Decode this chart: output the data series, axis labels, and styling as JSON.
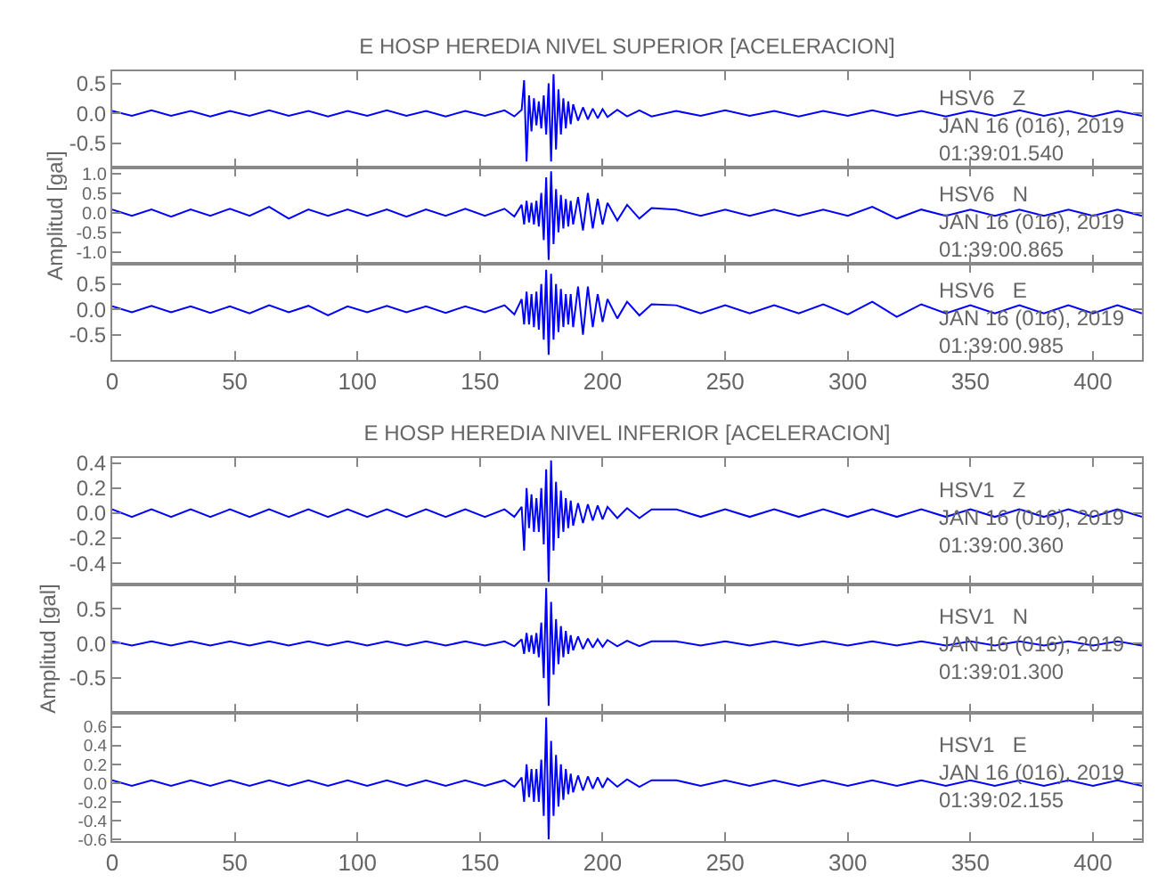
{
  "chart_data": [
    {
      "type": "line",
      "title": "E HOSP HEREDIA NIVEL SUPERIOR [ACELERACION]",
      "color": "#0000ff",
      "tick_labels": "y",
      "xlim": [
        0,
        420
      ],
      "xticks": [
        0,
        50,
        100,
        150,
        200,
        250,
        300,
        350,
        400
      ],
      "ylim": [
        -0.9,
        0.7
      ],
      "yticks": [
        {
          "value": 0.5,
          "label": "0.5"
        },
        {
          "value": 0,
          "label": "0.0"
        },
        {
          "value": -0.5,
          "label": "-0.5"
        }
      ],
      "annotations": [
        "HSV6   Z\nJAN 16 (016), 2019\n01:39:01.540"
      ],
      "x": [
        0,
        8,
        16,
        24,
        32,
        40,
        48,
        56,
        64,
        72,
        80,
        88,
        96,
        104,
        112,
        120,
        128,
        136,
        144,
        152,
        160,
        164,
        167,
        168,
        169,
        170,
        171,
        172,
        173,
        174,
        175,
        176,
        177,
        178,
        179,
        180,
        181,
        182,
        183,
        184,
        185,
        186,
        187,
        188,
        190,
        192,
        194,
        196,
        198,
        200,
        202,
        206,
        210,
        215,
        220,
        230,
        240,
        250,
        260,
        270,
        280,
        290,
        300,
        310,
        320,
        330,
        340,
        350,
        360,
        370,
        380,
        390,
        400,
        410,
        420
      ],
      "values": [
        0.04,
        -0.04,
        0.05,
        -0.04,
        0.04,
        -0.05,
        0.04,
        -0.04,
        0.05,
        -0.04,
        0.04,
        -0.05,
        0.04,
        -0.04,
        0.05,
        -0.04,
        0.04,
        -0.05,
        0.04,
        -0.04,
        0.05,
        -0.05,
        0.06,
        0.55,
        -0.8,
        0.3,
        -0.3,
        0.25,
        -0.2,
        0.2,
        -0.25,
        0.3,
        -0.35,
        0.5,
        -0.8,
        0.65,
        -0.6,
        0.4,
        -0.35,
        0.25,
        -0.25,
        0.2,
        -0.18,
        0.15,
        -0.12,
        0.1,
        -0.1,
        0.08,
        -0.08,
        0.07,
        -0.06,
        0.06,
        -0.05,
        0.05,
        -0.05,
        0.04,
        -0.04,
        0.05,
        -0.04,
        0.04,
        -0.05,
        0.04,
        -0.04,
        0.05,
        -0.04,
        0.04,
        -0.05,
        0.04,
        -0.04,
        0.05,
        -0.04,
        0.04,
        -0.05,
        0.04,
        -0.04
      ]
    },
    {
      "type": "line",
      "ylabel": "Amplitud [gal]",
      "color": "#0000ff",
      "tick_labels": "y",
      "xlim": [
        0,
        420
      ],
      "xticks": [
        0,
        50,
        100,
        150,
        200,
        250,
        300,
        350,
        400
      ],
      "ylim": [
        -1.3,
        1.15
      ],
      "yticks": [
        {
          "value": 1,
          "label": "1.0"
        },
        {
          "value": 0.5,
          "label": "0.5"
        },
        {
          "value": 0,
          "label": "0.0"
        },
        {
          "value": -0.5,
          "label": "-0.5"
        },
        {
          "value": -1,
          "label": "-1.0"
        }
      ],
      "annotations": [
        "HSV6   N\nJAN 16 (016), 2019\n01:39:00.865"
      ],
      "x": [
        0,
        8,
        16,
        24,
        32,
        40,
        48,
        56,
        64,
        72,
        80,
        88,
        96,
        104,
        112,
        120,
        128,
        136,
        144,
        152,
        160,
        164,
        167,
        168,
        169,
        170,
        171,
        172,
        173,
        174,
        175,
        176,
        177,
        178,
        179,
        180,
        181,
        182,
        183,
        184,
        185,
        186,
        187,
        188,
        190,
        192,
        194,
        196,
        198,
        200,
        202,
        206,
        210,
        215,
        220,
        230,
        240,
        250,
        260,
        270,
        280,
        290,
        300,
        310,
        320,
        330,
        340,
        350,
        360,
        370,
        380,
        390,
        400,
        410,
        420
      ],
      "values": [
        0.08,
        -0.08,
        0.08,
        -0.1,
        0.08,
        -0.08,
        0.1,
        -0.08,
        0.15,
        -0.15,
        0.08,
        -0.08,
        0.08,
        -0.08,
        0.08,
        -0.1,
        0.08,
        -0.08,
        0.1,
        -0.08,
        0.1,
        -0.1,
        0.2,
        -0.3,
        0.3,
        -0.25,
        0.25,
        -0.3,
        0.3,
        -0.35,
        0.5,
        -0.7,
        0.9,
        -1.2,
        1.05,
        -0.8,
        0.6,
        -0.5,
        0.45,
        -0.4,
        0.35,
        -0.35,
        0.3,
        -0.3,
        0.4,
        -0.45,
        0.5,
        -0.4,
        0.35,
        -0.3,
        0.25,
        -0.2,
        0.2,
        -0.15,
        0.12,
        0.08,
        -0.08,
        0.08,
        -0.08,
        0.08,
        -0.08,
        0.08,
        -0.08,
        0.15,
        -0.15,
        0.08,
        -0.08,
        0.08,
        -0.08,
        0.08,
        -0.08,
        0.08,
        -0.08,
        0.08,
        -0.08
      ]
    },
    {
      "type": "line",
      "color": "#0000ff",
      "xlim": [
        0,
        420
      ],
      "xticks": [
        0,
        50,
        100,
        150,
        200,
        250,
        300,
        350,
        400
      ],
      "ylim": [
        -1.0,
        0.9
      ],
      "yticks": [
        {
          "value": 0.5,
          "label": "0.5"
        },
        {
          "value": 0,
          "label": "0.0"
        },
        {
          "value": -0.5,
          "label": "-0.5"
        }
      ],
      "annotations": [
        "HSV6   E\nJAN 16 (016), 2019\n01:39:00.985"
      ],
      "x": [
        0,
        8,
        16,
        24,
        32,
        40,
        48,
        56,
        64,
        72,
        80,
        88,
        96,
        104,
        112,
        120,
        128,
        136,
        144,
        152,
        160,
        164,
        167,
        168,
        169,
        170,
        171,
        172,
        173,
        174,
        175,
        176,
        177,
        178,
        179,
        180,
        181,
        182,
        183,
        184,
        185,
        186,
        187,
        188,
        190,
        192,
        194,
        196,
        198,
        200,
        202,
        206,
        210,
        215,
        220,
        230,
        240,
        250,
        260,
        270,
        280,
        290,
        300,
        310,
        320,
        330,
        340,
        350,
        360,
        370,
        380,
        390,
        400,
        410,
        420
      ],
      "values": [
        0.06,
        -0.06,
        0.07,
        -0.06,
        0.06,
        -0.07,
        0.06,
        -0.08,
        0.08,
        -0.06,
        0.07,
        -0.12,
        0.06,
        -0.06,
        0.07,
        -0.06,
        0.06,
        -0.07,
        0.06,
        -0.06,
        0.08,
        -0.1,
        0.2,
        -0.3,
        0.35,
        -0.3,
        0.3,
        -0.35,
        0.35,
        -0.4,
        0.5,
        -0.6,
        0.78,
        -0.9,
        0.7,
        -0.6,
        0.5,
        -0.45,
        0.4,
        -0.35,
        0.3,
        -0.3,
        0.3,
        -0.35,
        0.45,
        -0.5,
        0.45,
        -0.35,
        0.3,
        -0.25,
        0.2,
        -0.18,
        0.15,
        -0.12,
        0.1,
        0.08,
        -0.08,
        0.08,
        -0.08,
        0.08,
        -0.08,
        0.1,
        -0.1,
        0.15,
        -0.15,
        0.1,
        -0.08,
        0.08,
        -0.08,
        0.08,
        -0.08,
        0.08,
        -0.08,
        0.08,
        -0.08
      ]
    },
    {
      "type": "line",
      "title": "E HOSP HEREDIA NIVEL INFERIOR [ACELERACION]",
      "color": "#0000ff",
      "tick_labels": "y",
      "xlim": [
        0,
        420
      ],
      "xticks": [
        0,
        50,
        100,
        150,
        200,
        250,
        300,
        350,
        400
      ],
      "ylim": [
        -0.57,
        0.44
      ],
      "yticks": [
        {
          "value": 0.4,
          "label": "0.4"
        },
        {
          "value": 0.2,
          "label": "0.2"
        },
        {
          "value": 0,
          "label": "0.0"
        },
        {
          "value": -0.2,
          "label": "-0.2"
        },
        {
          "value": -0.4,
          "label": "-0.4"
        }
      ],
      "annotations": [
        "HSV1   Z\nJAN 16 (016), 2019\n01:39:00.360"
      ],
      "x": [
        0,
        8,
        16,
        24,
        32,
        40,
        48,
        56,
        64,
        72,
        80,
        88,
        96,
        104,
        112,
        120,
        128,
        136,
        144,
        152,
        160,
        164,
        167,
        168,
        169,
        170,
        171,
        172,
        173,
        174,
        175,
        176,
        177,
        178,
        179,
        180,
        181,
        182,
        183,
        184,
        185,
        186,
        187,
        188,
        190,
        192,
        194,
        196,
        198,
        200,
        202,
        206,
        210,
        215,
        220,
        230,
        240,
        250,
        260,
        270,
        280,
        290,
        300,
        310,
        320,
        330,
        340,
        350,
        360,
        370,
        380,
        390,
        400,
        410,
        420
      ],
      "values": [
        0.03,
        -0.03,
        0.03,
        -0.03,
        0.03,
        -0.03,
        0.03,
        -0.03,
        0.03,
        -0.03,
        0.03,
        -0.03,
        0.03,
        -0.03,
        0.03,
        -0.03,
        0.03,
        -0.03,
        0.03,
        -0.03,
        0.03,
        -0.03,
        0.05,
        -0.3,
        0.2,
        -0.12,
        0.15,
        -0.15,
        0.12,
        -0.15,
        0.2,
        -0.25,
        0.35,
        -0.55,
        0.42,
        -0.3,
        0.25,
        -0.2,
        0.18,
        -0.15,
        0.12,
        -0.12,
        0.1,
        -0.1,
        0.08,
        -0.08,
        0.07,
        -0.06,
        0.06,
        -0.05,
        0.05,
        -0.04,
        0.04,
        -0.04,
        0.03,
        0.03,
        -0.03,
        0.03,
        -0.03,
        0.03,
        -0.03,
        0.03,
        -0.03,
        0.03,
        -0.03,
        0.03,
        -0.03,
        0.03,
        -0.03,
        0.03,
        -0.03,
        0.03,
        -0.03,
        0.03,
        -0.03
      ]
    },
    {
      "type": "line",
      "ylabel": "Amplitud [gal]",
      "color": "#0000ff",
      "tick_labels": "y",
      "xlim": [
        0,
        420
      ],
      "xticks": [
        0,
        50,
        100,
        150,
        200,
        250,
        300,
        350,
        400
      ],
      "ylim": [
        -1.0,
        0.85
      ],
      "yticks": [
        {
          "value": 0.5,
          "label": "0.5"
        },
        {
          "value": 0,
          "label": "0.0"
        },
        {
          "value": -0.5,
          "label": "-0.5"
        }
      ],
      "annotations": [
        "HSV1   N\nJAN 16 (016), 2019\n01:39:01.300"
      ],
      "x": [
        0,
        8,
        16,
        24,
        32,
        40,
        48,
        56,
        64,
        72,
        80,
        88,
        96,
        104,
        112,
        120,
        128,
        136,
        144,
        152,
        160,
        164,
        167,
        168,
        169,
        170,
        171,
        172,
        173,
        174,
        175,
        176,
        177,
        178,
        179,
        180,
        181,
        182,
        183,
        184,
        185,
        186,
        187,
        188,
        190,
        192,
        194,
        196,
        198,
        200,
        202,
        206,
        210,
        215,
        220,
        230,
        240,
        250,
        260,
        270,
        280,
        290,
        300,
        310,
        320,
        330,
        340,
        350,
        360,
        370,
        380,
        390,
        400,
        410,
        420
      ],
      "values": [
        0.03,
        -0.03,
        0.03,
        -0.03,
        0.03,
        -0.03,
        0.03,
        -0.03,
        0.03,
        -0.03,
        0.03,
        -0.03,
        0.03,
        -0.03,
        0.03,
        -0.03,
        0.03,
        -0.03,
        0.03,
        -0.03,
        0.03,
        -0.04,
        0.06,
        -0.15,
        0.15,
        -0.12,
        0.12,
        -0.15,
        0.15,
        -0.2,
        0.3,
        -0.5,
        0.8,
        -0.9,
        0.6,
        -0.45,
        0.35,
        -0.3,
        0.25,
        -0.2,
        0.18,
        -0.15,
        0.12,
        -0.1,
        0.1,
        -0.08,
        0.07,
        -0.06,
        0.06,
        -0.05,
        0.05,
        -0.04,
        0.04,
        -0.04,
        0.03,
        0.03,
        -0.03,
        0.03,
        -0.03,
        0.03,
        -0.03,
        0.03,
        -0.03,
        0.03,
        -0.03,
        0.03,
        -0.03,
        0.03,
        -0.03,
        0.03,
        -0.03,
        0.03,
        -0.03,
        0.03,
        -0.03
      ]
    },
    {
      "type": "line",
      "color": "#0000ff",
      "xlim": [
        0,
        420
      ],
      "xticks": [
        0,
        50,
        100,
        150,
        200,
        250,
        300,
        350,
        400
      ],
      "ylim": [
        -0.62,
        0.75
      ],
      "yticks": [
        {
          "value": 0.6,
          "label": "0.6"
        },
        {
          "value": 0.4,
          "label": "0.4"
        },
        {
          "value": 0.2,
          "label": "0.2"
        },
        {
          "value": 0,
          "label": "0.0"
        },
        {
          "value": -0.2,
          "label": "-0.2"
        },
        {
          "value": -0.4,
          "label": "-0.4"
        },
        {
          "value": -0.6,
          "label": "-0.6"
        }
      ],
      "annotations": [
        "HSV1   E\nJAN 16 (016), 2019\n01:39:02.155"
      ],
      "x": [
        0,
        8,
        16,
        24,
        32,
        40,
        48,
        56,
        64,
        72,
        80,
        88,
        96,
        104,
        112,
        120,
        128,
        136,
        144,
        152,
        160,
        164,
        167,
        168,
        169,
        170,
        171,
        172,
        173,
        174,
        175,
        176,
        177,
        178,
        179,
        180,
        181,
        182,
        183,
        184,
        185,
        186,
        187,
        188,
        190,
        192,
        194,
        196,
        198,
        200,
        202,
        206,
        210,
        215,
        220,
        230,
        240,
        250,
        260,
        270,
        280,
        290,
        300,
        310,
        320,
        330,
        340,
        350,
        360,
        370,
        380,
        390,
        400,
        410,
        420
      ],
      "values": [
        0.03,
        -0.03,
        0.03,
        -0.03,
        0.03,
        -0.03,
        0.03,
        -0.03,
        0.03,
        -0.03,
        0.03,
        -0.03,
        0.03,
        -0.03,
        0.03,
        -0.03,
        0.03,
        -0.03,
        0.03,
        -0.03,
        0.03,
        -0.04,
        0.06,
        -0.2,
        0.2,
        -0.15,
        0.15,
        -0.2,
        0.15,
        -0.2,
        0.25,
        -0.35,
        0.7,
        -0.6,
        0.45,
        -0.35,
        0.3,
        -0.25,
        0.2,
        -0.18,
        0.15,
        -0.12,
        0.1,
        -0.1,
        0.08,
        -0.08,
        0.07,
        -0.06,
        0.06,
        -0.05,
        0.05,
        -0.04,
        0.04,
        -0.04,
        0.03,
        0.03,
        -0.03,
        0.03,
        -0.03,
        0.03,
        -0.03,
        0.03,
        -0.03,
        0.03,
        -0.03,
        0.03,
        -0.03,
        0.03,
        -0.03,
        0.03,
        -0.03,
        0.03,
        -0.03,
        0.03,
        -0.03
      ]
    }
  ]
}
